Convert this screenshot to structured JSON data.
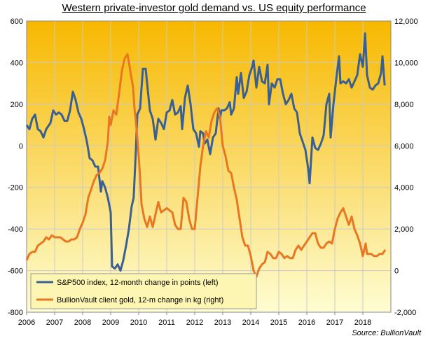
{
  "chart_data": {
    "type": "line",
    "title": "Western private-investor  gold demand vs. US equity performance",
    "source": "Source:  BullionVault",
    "x_range": [
      2006.0,
      2019.0
    ],
    "x_ticks": [
      "2006",
      "2007",
      "2008",
      "2009",
      "2010",
      "2011",
      "2012",
      "2013",
      "2014",
      "2015",
      "2016",
      "2017",
      "2018"
    ],
    "y_left": {
      "range": [
        -800,
        600
      ],
      "ticks": [
        "600",
        "400",
        "200",
        "0",
        "-200",
        "-400",
        "-600",
        "-800"
      ]
    },
    "y_right": {
      "range": [
        -2000,
        12000
      ],
      "ticks": [
        "12,000",
        "10,000",
        "8,000",
        "6,000",
        "4,000",
        "2,000",
        "0",
        "-2,000"
      ]
    },
    "grid": true,
    "legend_position": "bottom-left",
    "background": {
      "top": "#f7b800",
      "bottom": "#fefdd2"
    },
    "series": [
      {
        "name": "S&P500 index, 12-month change in points (left)",
        "axis": "left",
        "color": "#3a5f91",
        "points": [
          [
            2006.0,
            100
          ],
          [
            2006.1,
            80
          ],
          [
            2006.2,
            130
          ],
          [
            2006.3,
            150
          ],
          [
            2006.4,
            80
          ],
          [
            2006.5,
            70
          ],
          [
            2006.6,
            40
          ],
          [
            2006.7,
            80
          ],
          [
            2006.85,
            110
          ],
          [
            2006.95,
            170
          ],
          [
            2007.05,
            150
          ],
          [
            2007.15,
            160
          ],
          [
            2007.25,
            150
          ],
          [
            2007.35,
            120
          ],
          [
            2007.45,
            120
          ],
          [
            2007.55,
            170
          ],
          [
            2007.65,
            260
          ],
          [
            2007.75,
            220
          ],
          [
            2007.85,
            160
          ],
          [
            2007.95,
            130
          ],
          [
            2008.05,
            80
          ],
          [
            2008.15,
            20
          ],
          [
            2008.25,
            -60
          ],
          [
            2008.35,
            -70
          ],
          [
            2008.45,
            -100
          ],
          [
            2008.55,
            -100
          ],
          [
            2008.65,
            -220
          ],
          [
            2008.7,
            -170
          ],
          [
            2008.8,
            -200
          ],
          [
            2008.9,
            -250
          ],
          [
            2009.0,
            -320
          ],
          [
            2009.05,
            -580
          ],
          [
            2009.15,
            -590
          ],
          [
            2009.25,
            -570
          ],
          [
            2009.35,
            -600
          ],
          [
            2009.45,
            -550
          ],
          [
            2009.55,
            -480
          ],
          [
            2009.65,
            -400
          ],
          [
            2009.75,
            -290
          ],
          [
            2009.82,
            -250
          ],
          [
            2009.9,
            -20
          ],
          [
            2009.95,
            150
          ],
          [
            2010.05,
            180
          ],
          [
            2010.15,
            370
          ],
          [
            2010.25,
            370
          ],
          [
            2010.3,
            300
          ],
          [
            2010.4,
            170
          ],
          [
            2010.5,
            130
          ],
          [
            2010.6,
            30
          ],
          [
            2010.7,
            130
          ],
          [
            2010.8,
            110
          ],
          [
            2010.9,
            80
          ],
          [
            2011.0,
            160
          ],
          [
            2011.1,
            170
          ],
          [
            2011.2,
            220
          ],
          [
            2011.3,
            150
          ],
          [
            2011.4,
            160
          ],
          [
            2011.5,
            190
          ],
          [
            2011.55,
            80
          ],
          [
            2011.65,
            230
          ],
          [
            2011.75,
            290
          ],
          [
            2011.85,
            200
          ],
          [
            2011.95,
            80
          ],
          [
            2012.05,
            60
          ],
          [
            2012.15,
            -5
          ],
          [
            2012.2,
            70
          ],
          [
            2012.3,
            60
          ],
          [
            2012.35,
            10
          ],
          [
            2012.45,
            30
          ],
          [
            2012.55,
            -40
          ],
          [
            2012.65,
            40
          ],
          [
            2012.75,
            60
          ],
          [
            2012.85,
            180
          ],
          [
            2012.9,
            130
          ],
          [
            2012.95,
            170
          ],
          [
            2013.05,
            170
          ],
          [
            2013.15,
            180
          ],
          [
            2013.25,
            210
          ],
          [
            2013.3,
            150
          ],
          [
            2013.4,
            180
          ],
          [
            2013.5,
            330
          ],
          [
            2013.55,
            250
          ],
          [
            2013.65,
            350
          ],
          [
            2013.75,
            230
          ],
          [
            2013.85,
            260
          ],
          [
            2013.95,
            340
          ],
          [
            2014.05,
            380
          ],
          [
            2014.1,
            410
          ],
          [
            2014.2,
            280
          ],
          [
            2014.3,
            380
          ],
          [
            2014.4,
            310
          ],
          [
            2014.5,
            300
          ],
          [
            2014.6,
            390
          ],
          [
            2014.65,
            200
          ],
          [
            2014.75,
            300
          ],
          [
            2014.85,
            280
          ],
          [
            2014.95,
            320
          ],
          [
            2015.05,
            320
          ],
          [
            2015.15,
            250
          ],
          [
            2015.25,
            200
          ],
          [
            2015.35,
            220
          ],
          [
            2015.45,
            250
          ],
          [
            2015.55,
            180
          ],
          [
            2015.65,
            160
          ],
          [
            2015.75,
            60
          ],
          [
            2015.85,
            20
          ],
          [
            2015.95,
            -20
          ],
          [
            2016.05,
            -110
          ],
          [
            2016.1,
            -180
          ],
          [
            2016.2,
            40
          ],
          [
            2016.3,
            -10
          ],
          [
            2016.4,
            -20
          ],
          [
            2016.5,
            10
          ],
          [
            2016.6,
            50
          ],
          [
            2016.7,
            200
          ],
          [
            2016.8,
            250
          ],
          [
            2016.85,
            40
          ],
          [
            2016.95,
            200
          ],
          [
            2017.05,
            320
          ],
          [
            2017.15,
            430
          ],
          [
            2017.2,
            300
          ],
          [
            2017.3,
            310
          ],
          [
            2017.4,
            300
          ],
          [
            2017.5,
            320
          ],
          [
            2017.6,
            280
          ],
          [
            2017.7,
            310
          ],
          [
            2017.8,
            340
          ],
          [
            2017.9,
            440
          ],
          [
            2018.0,
            380
          ],
          [
            2018.08,
            540
          ],
          [
            2018.15,
            340
          ],
          [
            2018.25,
            280
          ],
          [
            2018.35,
            270
          ],
          [
            2018.45,
            290
          ],
          [
            2018.55,
            300
          ],
          [
            2018.65,
            350
          ],
          [
            2018.7,
            430
          ],
          [
            2018.78,
            290
          ]
        ]
      },
      {
        "name": "BullionVault client gold, 12-m change in kg (right)",
        "axis": "right",
        "color": "#e87722",
        "points": [
          [
            2006.0,
            500
          ],
          [
            2006.1,
            800
          ],
          [
            2006.2,
            900
          ],
          [
            2006.3,
            900
          ],
          [
            2006.4,
            1200
          ],
          [
            2006.5,
            1300
          ],
          [
            2006.6,
            1400
          ],
          [
            2006.7,
            1600
          ],
          [
            2006.8,
            1500
          ],
          [
            2006.9,
            1700
          ],
          [
            2007.0,
            1600
          ],
          [
            2007.1,
            1600
          ],
          [
            2007.2,
            1600
          ],
          [
            2007.3,
            1500
          ],
          [
            2007.4,
            1400
          ],
          [
            2007.5,
            1400
          ],
          [
            2007.6,
            1500
          ],
          [
            2007.7,
            1500
          ],
          [
            2007.8,
            1600
          ],
          [
            2007.9,
            2000
          ],
          [
            2008.0,
            2300
          ],
          [
            2008.1,
            2700
          ],
          [
            2008.2,
            3500
          ],
          [
            2008.3,
            3900
          ],
          [
            2008.4,
            4300
          ],
          [
            2008.5,
            4600
          ],
          [
            2008.6,
            4700
          ],
          [
            2008.7,
            4900
          ],
          [
            2008.8,
            5300
          ],
          [
            2008.9,
            6200
          ],
          [
            2008.95,
            7400
          ],
          [
            2009.0,
            7000
          ],
          [
            2009.1,
            7700
          ],
          [
            2009.2,
            7500
          ],
          [
            2009.3,
            8500
          ],
          [
            2009.4,
            9600
          ],
          [
            2009.5,
            10200
          ],
          [
            2009.6,
            10400
          ],
          [
            2009.7,
            9600
          ],
          [
            2009.8,
            8800
          ],
          [
            2009.85,
            7800
          ],
          [
            2009.9,
            7200
          ],
          [
            2010.0,
            5500
          ],
          [
            2010.05,
            4500
          ],
          [
            2010.1,
            3200
          ],
          [
            2010.2,
            2500
          ],
          [
            2010.3,
            2100
          ],
          [
            2010.4,
            2600
          ],
          [
            2010.5,
            2100
          ],
          [
            2010.6,
            2700
          ],
          [
            2010.7,
            3300
          ],
          [
            2010.8,
            2800
          ],
          [
            2010.9,
            2900
          ],
          [
            2011.0,
            3000
          ],
          [
            2011.1,
            2900
          ],
          [
            2011.2,
            2800
          ],
          [
            2011.3,
            2200
          ],
          [
            2011.4,
            2000
          ],
          [
            2011.5,
            2000
          ],
          [
            2011.6,
            3500
          ],
          [
            2011.7,
            3300
          ],
          [
            2011.8,
            2500
          ],
          [
            2011.9,
            2000
          ],
          [
            2012.0,
            2000
          ],
          [
            2012.1,
            3500
          ],
          [
            2012.2,
            5000
          ],
          [
            2012.3,
            6000
          ],
          [
            2012.4,
            6700
          ],
          [
            2012.5,
            6400
          ],
          [
            2012.6,
            7200
          ],
          [
            2012.7,
            7600
          ],
          [
            2012.8,
            7800
          ],
          [
            2012.9,
            7400
          ],
          [
            2013.0,
            6000
          ],
          [
            2013.1,
            5500
          ],
          [
            2013.2,
            4800
          ],
          [
            2013.3,
            4700
          ],
          [
            2013.4,
            4000
          ],
          [
            2013.5,
            3400
          ],
          [
            2013.6,
            2500
          ],
          [
            2013.7,
            1600
          ],
          [
            2013.8,
            1200
          ],
          [
            2013.9,
            1200
          ],
          [
            2014.0,
            700
          ],
          [
            2014.1,
            0
          ],
          [
            2014.2,
            -300
          ],
          [
            2014.3,
            100
          ],
          [
            2014.4,
            300
          ],
          [
            2014.5,
            400
          ],
          [
            2014.6,
            900
          ],
          [
            2014.7,
            800
          ],
          [
            2014.8,
            600
          ],
          [
            2014.9,
            600
          ],
          [
            2015.0,
            900
          ],
          [
            2015.1,
            800
          ],
          [
            2015.2,
            600
          ],
          [
            2015.3,
            700
          ],
          [
            2015.4,
            600
          ],
          [
            2015.5,
            600
          ],
          [
            2015.6,
            1000
          ],
          [
            2015.7,
            1200
          ],
          [
            2015.8,
            1000
          ],
          [
            2015.9,
            1200
          ],
          [
            2016.0,
            1400
          ],
          [
            2016.1,
            1600
          ],
          [
            2016.2,
            1800
          ],
          [
            2016.3,
            1800
          ],
          [
            2016.4,
            1300
          ],
          [
            2016.5,
            1100
          ],
          [
            2016.6,
            1100
          ],
          [
            2016.7,
            1300
          ],
          [
            2016.8,
            1400
          ],
          [
            2016.9,
            1300
          ],
          [
            2017.0,
            2000
          ],
          [
            2017.1,
            2500
          ],
          [
            2017.2,
            2800
          ],
          [
            2017.3,
            3000
          ],
          [
            2017.4,
            2600
          ],
          [
            2017.5,
            2200
          ],
          [
            2017.6,
            2600
          ],
          [
            2017.7,
            2000
          ],
          [
            2017.8,
            1700
          ],
          [
            2017.9,
            1300
          ],
          [
            2018.0,
            700
          ],
          [
            2018.1,
            1300
          ],
          [
            2018.15,
            800
          ],
          [
            2018.2,
            800
          ],
          [
            2018.3,
            800
          ],
          [
            2018.4,
            700
          ],
          [
            2018.5,
            700
          ],
          [
            2018.6,
            800
          ],
          [
            2018.7,
            800
          ],
          [
            2018.8,
            1000
          ]
        ]
      }
    ]
  }
}
